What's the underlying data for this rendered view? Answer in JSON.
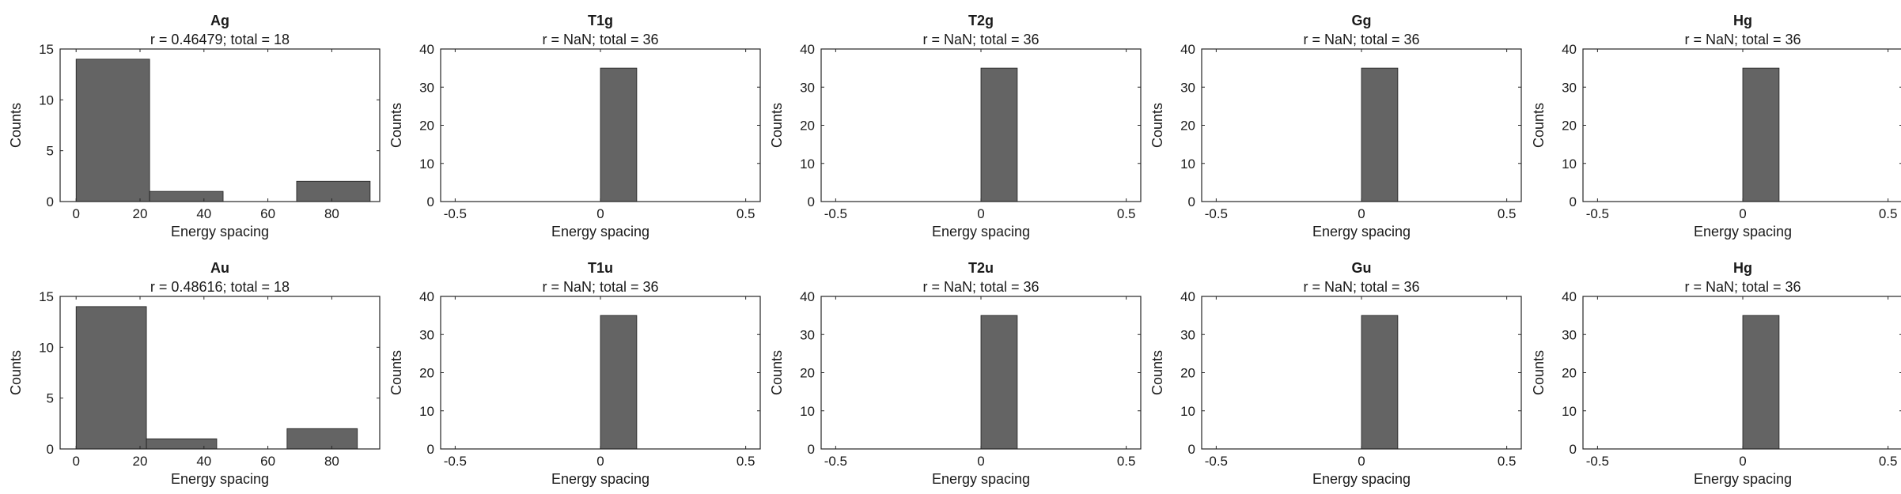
{
  "figure": {
    "colors": {
      "bar_fill": "#646464",
      "axis": "#262626",
      "text": "#1a1a1a"
    }
  },
  "chart_data": [
    {
      "type": "bar",
      "title": "Ag",
      "subtitle": "r = 0.46479; total = 18",
      "xlabel": "Energy spacing",
      "ylabel": "Counts",
      "xlim": [
        -5,
        95
      ],
      "ylim": [
        0,
        15
      ],
      "xticks": [
        "0",
        "20",
        "40",
        "60",
        "80"
      ],
      "xtick_values": [
        0,
        20,
        40,
        60,
        80
      ],
      "yticks": [
        "0",
        "5",
        "10",
        "15"
      ],
      "ytick_values": [
        0,
        5,
        10,
        15
      ],
      "bins": [
        {
          "from": 0,
          "to": 23,
          "count": 14
        },
        {
          "from": 23,
          "to": 46,
          "count": 1
        },
        {
          "from": 46,
          "to": 69,
          "count": 0
        },
        {
          "from": 69,
          "to": 92,
          "count": 2
        }
      ]
    },
    {
      "type": "bar",
      "title": "T1g",
      "subtitle": "r = NaN; total = 36",
      "xlabel": "Energy spacing",
      "ylabel": "Counts",
      "xlim": [
        -0.55,
        0.55
      ],
      "ylim": [
        0,
        40
      ],
      "xticks": [
        "-0.5",
        "0",
        "0.5"
      ],
      "xtick_values": [
        -0.5,
        0,
        0.5
      ],
      "yticks": [
        "0",
        "10",
        "20",
        "30",
        "40"
      ],
      "ytick_values": [
        0,
        10,
        20,
        30,
        40
      ],
      "bins": [
        {
          "from": 0,
          "to": 0.125,
          "count": 35
        }
      ]
    },
    {
      "type": "bar",
      "title": "T2g",
      "subtitle": "r = NaN; total = 36",
      "xlabel": "Energy spacing",
      "ylabel": "Counts",
      "xlim": [
        -0.55,
        0.55
      ],
      "ylim": [
        0,
        40
      ],
      "xticks": [
        "-0.5",
        "0",
        "0.5"
      ],
      "xtick_values": [
        -0.5,
        0,
        0.5
      ],
      "yticks": [
        "0",
        "10",
        "20",
        "30",
        "40"
      ],
      "ytick_values": [
        0,
        10,
        20,
        30,
        40
      ],
      "bins": [
        {
          "from": 0,
          "to": 0.125,
          "count": 35
        }
      ]
    },
    {
      "type": "bar",
      "title": "Gg",
      "subtitle": "r = NaN; total = 36",
      "xlabel": "Energy spacing",
      "ylabel": "Counts",
      "xlim": [
        -0.55,
        0.55
      ],
      "ylim": [
        0,
        40
      ],
      "xticks": [
        "-0.5",
        "0",
        "0.5"
      ],
      "xtick_values": [
        -0.5,
        0,
        0.5
      ],
      "yticks": [
        "0",
        "10",
        "20",
        "30",
        "40"
      ],
      "ytick_values": [
        0,
        10,
        20,
        30,
        40
      ],
      "bins": [
        {
          "from": 0,
          "to": 0.125,
          "count": 35
        }
      ]
    },
    {
      "type": "bar",
      "title": "Hg",
      "subtitle": "r = NaN; total = 36",
      "xlabel": "Energy spacing",
      "ylabel": "Counts",
      "xlim": [
        -0.55,
        0.55
      ],
      "ylim": [
        0,
        40
      ],
      "xticks": [
        "-0.5",
        "0",
        "0.5"
      ],
      "xtick_values": [
        -0.5,
        0,
        0.5
      ],
      "yticks": [
        "0",
        "10",
        "20",
        "30",
        "40"
      ],
      "ytick_values": [
        0,
        10,
        20,
        30,
        40
      ],
      "bins": [
        {
          "from": 0,
          "to": 0.125,
          "count": 35
        }
      ]
    },
    {
      "type": "bar",
      "title": "Au",
      "subtitle": "r = 0.48616; total = 18",
      "xlabel": "Energy spacing",
      "ylabel": "Counts",
      "xlim": [
        -5,
        95
      ],
      "ylim": [
        0,
        15
      ],
      "xticks": [
        "0",
        "20",
        "40",
        "60",
        "80"
      ],
      "xtick_values": [
        0,
        20,
        40,
        60,
        80
      ],
      "yticks": [
        "0",
        "5",
        "10",
        "15"
      ],
      "ytick_values": [
        0,
        5,
        10,
        15
      ],
      "bins": [
        {
          "from": 0,
          "to": 22,
          "count": 14
        },
        {
          "from": 22,
          "to": 44,
          "count": 1
        },
        {
          "from": 44,
          "to": 66,
          "count": 0
        },
        {
          "from": 66,
          "to": 88,
          "count": 2
        }
      ]
    },
    {
      "type": "bar",
      "title": "T1u",
      "subtitle": "r = NaN; total = 36",
      "xlabel": "Energy spacing",
      "ylabel": "Counts",
      "xlim": [
        -0.55,
        0.55
      ],
      "ylim": [
        0,
        40
      ],
      "xticks": [
        "-0.5",
        "0",
        "0.5"
      ],
      "xtick_values": [
        -0.5,
        0,
        0.5
      ],
      "yticks": [
        "0",
        "10",
        "20",
        "30",
        "40"
      ],
      "ytick_values": [
        0,
        10,
        20,
        30,
        40
      ],
      "bins": [
        {
          "from": 0,
          "to": 0.125,
          "count": 35
        }
      ]
    },
    {
      "type": "bar",
      "title": "T2u",
      "subtitle": "r = NaN; total = 36",
      "xlabel": "Energy spacing",
      "ylabel": "Counts",
      "xlim": [
        -0.55,
        0.55
      ],
      "ylim": [
        0,
        40
      ],
      "xticks": [
        "-0.5",
        "0",
        "0.5"
      ],
      "xtick_values": [
        -0.5,
        0,
        0.5
      ],
      "yticks": [
        "0",
        "10",
        "20",
        "30",
        "40"
      ],
      "ytick_values": [
        0,
        10,
        20,
        30,
        40
      ],
      "bins": [
        {
          "from": 0,
          "to": 0.125,
          "count": 35
        }
      ]
    },
    {
      "type": "bar",
      "title": "Gu",
      "subtitle": "r = NaN; total = 36",
      "xlabel": "Energy spacing",
      "ylabel": "Counts",
      "xlim": [
        -0.55,
        0.55
      ],
      "ylim": [
        0,
        40
      ],
      "xticks": [
        "-0.5",
        "0",
        "0.5"
      ],
      "xtick_values": [
        -0.5,
        0,
        0.5
      ],
      "yticks": [
        "0",
        "10",
        "20",
        "30",
        "40"
      ],
      "ytick_values": [
        0,
        10,
        20,
        30,
        40
      ],
      "bins": [
        {
          "from": 0,
          "to": 0.125,
          "count": 35
        }
      ]
    },
    {
      "type": "bar",
      "title": "Hg",
      "subtitle": "r = NaN; total = 36",
      "xlabel": "Energy spacing",
      "ylabel": "Counts",
      "xlim": [
        -0.55,
        0.55
      ],
      "ylim": [
        0,
        40
      ],
      "xticks": [
        "-0.5",
        "0",
        "0.5"
      ],
      "xtick_values": [
        -0.5,
        0,
        0.5
      ],
      "yticks": [
        "0",
        "10",
        "20",
        "30",
        "40"
      ],
      "ytick_values": [
        0,
        10,
        20,
        30,
        40
      ],
      "bins": [
        {
          "from": 0,
          "to": 0.125,
          "count": 35
        }
      ]
    }
  ]
}
